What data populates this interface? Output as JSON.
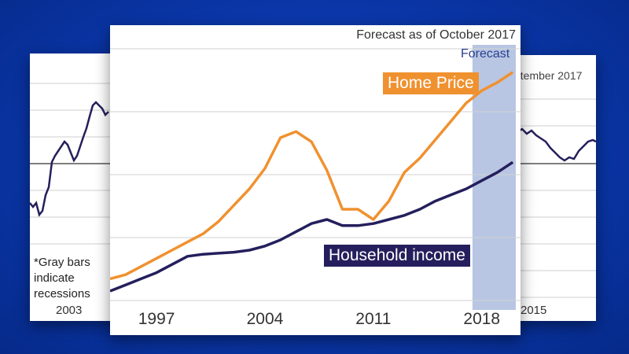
{
  "left_panel": {
    "note_lines": [
      "*Gray bars",
      "indicate",
      "recessions"
    ],
    "year_label": "2003"
  },
  "right_panel": {
    "title_fragment": "ptember 2017",
    "year_label": "2015"
  },
  "chart_data": {
    "type": "line",
    "title": "Forecast as of October 2017",
    "forecast_label": "Forecast",
    "forecast_start": 2017.4,
    "x_range": [
      1994,
      2020.5
    ],
    "y_range": [
      0,
      10
    ],
    "xticks": [
      1997,
      2004,
      2011,
      2018
    ],
    "grid": true,
    "series": [
      {
        "name": "Home Price",
        "color": "#f0912f",
        "x": [
          1994,
          1995,
          1996,
          1997,
          1998,
          1999,
          2000,
          2001,
          2002,
          2003,
          2004,
          2005,
          2006,
          2007,
          2008,
          2009,
          2010,
          2011,
          2012,
          2013,
          2014,
          2015,
          2016,
          2017,
          2018,
          2019,
          2020
        ],
        "y": [
          0.6,
          0.8,
          1.2,
          1.6,
          2.0,
          2.4,
          2.8,
          3.4,
          4.2,
          5.0,
          6.0,
          7.5,
          7.8,
          7.3,
          5.9,
          4.0,
          4.0,
          3.5,
          4.4,
          5.8,
          6.5,
          7.4,
          8.3,
          9.2,
          9.8,
          10.2,
          10.7
        ]
      },
      {
        "name": "Household income",
        "color": "#241f5c",
        "x": [
          1994,
          1995,
          1996,
          1997,
          1998,
          1999,
          2000,
          2001,
          2002,
          2003,
          2004,
          2005,
          2006,
          2007,
          2008,
          2009,
          2010,
          2011,
          2012,
          2013,
          2014,
          2015,
          2016,
          2017,
          2018,
          2019,
          2020
        ],
        "y": [
          0.0,
          0.3,
          0.6,
          0.9,
          1.3,
          1.7,
          1.8,
          1.85,
          1.9,
          2.0,
          2.2,
          2.5,
          2.9,
          3.3,
          3.5,
          3.2,
          3.2,
          3.3,
          3.5,
          3.7,
          4.0,
          4.4,
          4.7,
          5.0,
          5.4,
          5.8,
          6.3
        ]
      }
    ]
  }
}
